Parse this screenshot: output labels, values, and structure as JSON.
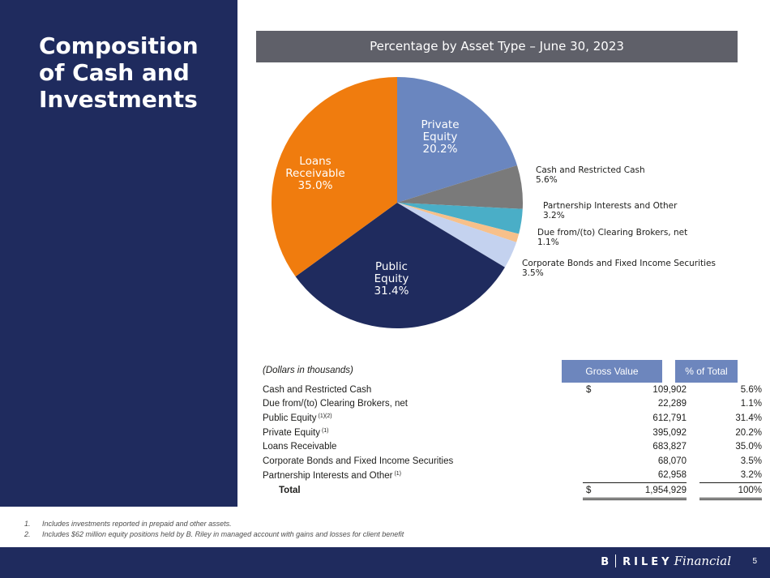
{
  "sidebar": {
    "title": "Composition of Cash and Investments"
  },
  "chart_data": {
    "type": "pie",
    "title": "Percentage by Asset Type – June 30, 2023",
    "start_angle_deg": 0,
    "direction": "clockwise",
    "slices": [
      {
        "key": "pe",
        "label": "Private Equity",
        "value": 20.2,
        "color": "#6a86bf",
        "label_color": "#ffffff",
        "inside": true,
        "lines": [
          "Private",
          "Equity",
          "20.2%"
        ]
      },
      {
        "key": "crc",
        "label": "Cash and Restricted Cash",
        "value": 5.6,
        "color": "#7a7a7a",
        "label_color": "#1d1d1b",
        "inside": false,
        "lines": [
          "Cash and Restricted Cash",
          "5.6%"
        ]
      },
      {
        "key": "pio",
        "label": "Partnership Interests and Other",
        "value": 3.2,
        "color": "#4aaec7",
        "label_color": "#1d1d1b",
        "inside": false,
        "lines": [
          "Partnership Interests and Other",
          "3.2%"
        ]
      },
      {
        "key": "dcb",
        "label": "Due from/(to) Clearing Brokers, net",
        "value": 1.1,
        "color": "#f7c08a",
        "label_color": "#1d1d1b",
        "inside": false,
        "lines": [
          "Due from/(to) Clearing Brokers, net",
          "1.1%"
        ]
      },
      {
        "key": "cbf",
        "label": "Corporate Bonds and Fixed Income Securities",
        "value": 3.5,
        "color": "#c4d2ef",
        "label_color": "#1d1d1b",
        "inside": false,
        "lines": [
          "Corporate Bonds and Fixed Income Securities",
          "3.5%"
        ]
      },
      {
        "key": "pub",
        "label": "Public Equity",
        "value": 31.4,
        "color": "#1f2b5e",
        "label_color": "#ffffff",
        "inside": true,
        "lines": [
          "Public",
          "Equity",
          "31.4%"
        ]
      },
      {
        "key": "loan",
        "label": "Loans Receivable",
        "value": 35.0,
        "color": "#f07c0e",
        "label_color": "#ffffff",
        "inside": true,
        "lines": [
          "Loans",
          "Receivable",
          "35.0%"
        ]
      }
    ]
  },
  "table": {
    "caption": "(Dollars in thousands)",
    "headers": {
      "gross": "Gross Value",
      "pct": "% of Total"
    },
    "rows": [
      {
        "label": "Cash and Restricted Cash",
        "sup": "",
        "dollar": "$",
        "value": "109,902",
        "pct": "5.6%"
      },
      {
        "label": "Due from/(to) Clearing Brokers, net",
        "sup": "",
        "dollar": "",
        "value": "22,289",
        "pct": "1.1%"
      },
      {
        "label": "Public Equity",
        "sup": "(1)(2)",
        "dollar": "",
        "value": "612,791",
        "pct": "31.4%"
      },
      {
        "label": "Private Equity",
        "sup": "(1)",
        "dollar": "",
        "value": "395,092",
        "pct": "20.2%"
      },
      {
        "label": "Loans Receivable",
        "sup": "",
        "dollar": "",
        "value": "683,827",
        "pct": "35.0%"
      },
      {
        "label": "Corporate Bonds and Fixed Income Securities",
        "sup": "",
        "dollar": "",
        "value": "68,070",
        "pct": "3.5%"
      },
      {
        "label": "Partnership Interests and Other",
        "sup": "(1)",
        "dollar": "",
        "value": "62,958",
        "pct": "3.2%"
      }
    ],
    "total": {
      "label": "Total",
      "dollar": "$",
      "value": "1,954,929",
      "pct": "100%"
    }
  },
  "footnotes": [
    {
      "num": "1.",
      "text": "Includes investments reported in prepaid and other assets."
    },
    {
      "num": "2.",
      "text": "Includes $62 million equity positions held by B. Riley in managed account with gains and losses for client benefit"
    }
  ],
  "footer": {
    "logo_b": "B",
    "logo_riley": "RILEY",
    "logo_financial": "Financial",
    "page_number": "5"
  }
}
